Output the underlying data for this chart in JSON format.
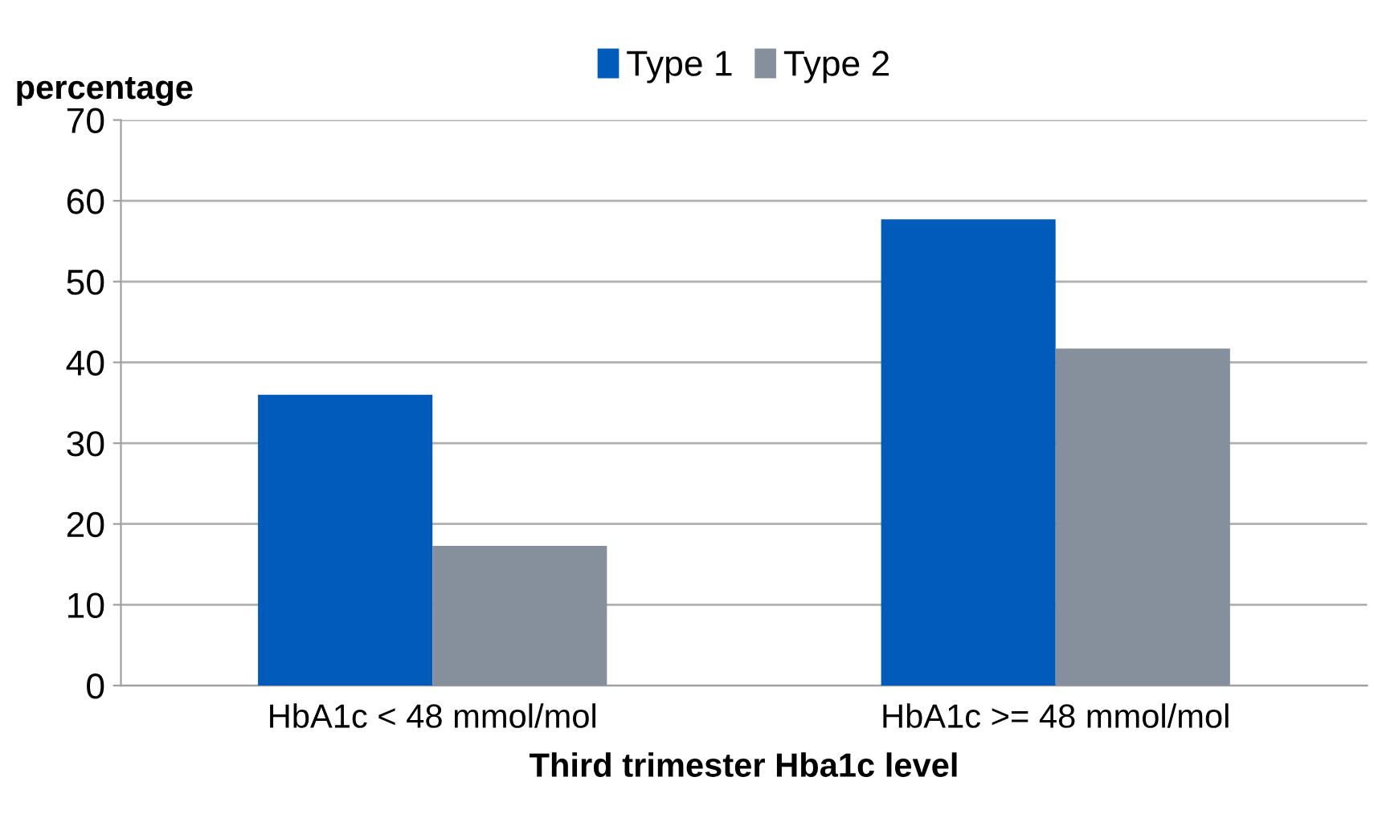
{
  "chart_data": {
    "type": "bar",
    "categories": [
      "HbA1c < 48 mmol/mol",
      "HbA1c >= 48 mmol/mol"
    ],
    "series": [
      {
        "name": "Type 1",
        "color": "#005bbb",
        "values": [
          36,
          57.7
        ]
      },
      {
        "name": "Type 2",
        "color": "#85909c",
        "values": [
          17.3,
          41.7
        ]
      }
    ],
    "ylabel": "percentage",
    "xlabel": "Third trimester Hba1c level",
    "ylim": [
      0,
      70
    ],
    "yticks": [
      0,
      10,
      20,
      30,
      40,
      50,
      60,
      70
    ],
    "grid": "y",
    "legend": "top"
  }
}
